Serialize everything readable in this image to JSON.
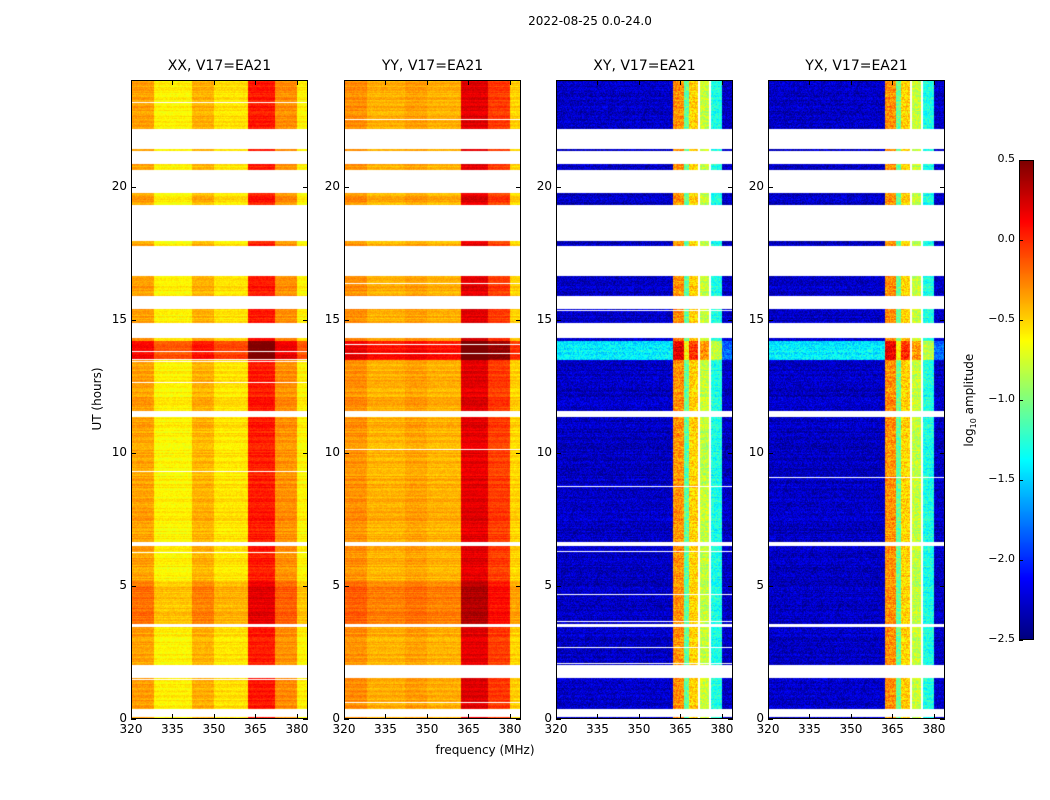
{
  "chart_data": {
    "type": "heatmap",
    "title": "2022-08-25 0.0-24.0",
    "xlabel": "frequency (MHz)",
    "ylabel": "UT (hours)",
    "xlim": [
      320,
      384
    ],
    "ylim": [
      0,
      24
    ],
    "xticks": [
      320,
      335,
      350,
      365,
      380
    ],
    "yticks": [
      0,
      5,
      10,
      15,
      20
    ],
    "colormap": "jet",
    "colorbar": {
      "label_main": "log",
      "label_sub": "10",
      "label_rest": " amplitude",
      "range": [
        -2.5,
        0.5
      ],
      "ticks": [
        "0.5",
        "0.0",
        "−0.5",
        "−1.0",
        "−1.5",
        "−2.0",
        "−2.5"
      ]
    },
    "missing_time_ranges_hours": [
      [
        0.11,
        0.41
      ],
      [
        1.54,
        2.03
      ],
      [
        3.49,
        3.6
      ],
      [
        6.53,
        6.68
      ],
      [
        11.37,
        11.6
      ],
      [
        14.33,
        14.9
      ],
      [
        15.42,
        15.91
      ],
      [
        16.66,
        17.79
      ],
      [
        17.97,
        19.32
      ],
      [
        19.77,
        20.64
      ],
      [
        20.86,
        21.35
      ],
      [
        21.43,
        22.18
      ]
    ],
    "panels": [
      {
        "title": "XX, V17=EA21",
        "kind": "parallel",
        "typical_log_amp": {
          "320-328": -0.35,
          "328-342": -0.6,
          "342-350": -0.4,
          "350-362": -0.55,
          "362-372": 0.05,
          "372-380": -0.3,
          "380-384": -0.6
        }
      },
      {
        "title": "YY, V17=EA21",
        "kind": "parallel",
        "typical_log_amp": {
          "320-328": -0.3,
          "328-342": -0.4,
          "342-350": -0.35,
          "350-362": -0.4,
          "362-372": 0.2,
          "372-380": -0.05,
          "380-384": -0.5
        }
      },
      {
        "title": "XY, V17=EA21",
        "kind": "cross",
        "typical_log_amp": {
          "320-362": -2.3,
          "362-366": -0.3,
          "366-368": -1.1,
          "368-371": -0.5,
          "372-375": -0.8,
          "376-380": -1.3,
          "380-384": -2.3
        }
      },
      {
        "title": "YX, V17=EA21",
        "kind": "cross",
        "typical_log_amp": {
          "320-362": -2.3,
          "362-366": -0.3,
          "366-368": -1.1,
          "368-371": -0.5,
          "372-375": -0.8,
          "376-380": -1.3,
          "380-384": -2.3
        }
      }
    ]
  }
}
